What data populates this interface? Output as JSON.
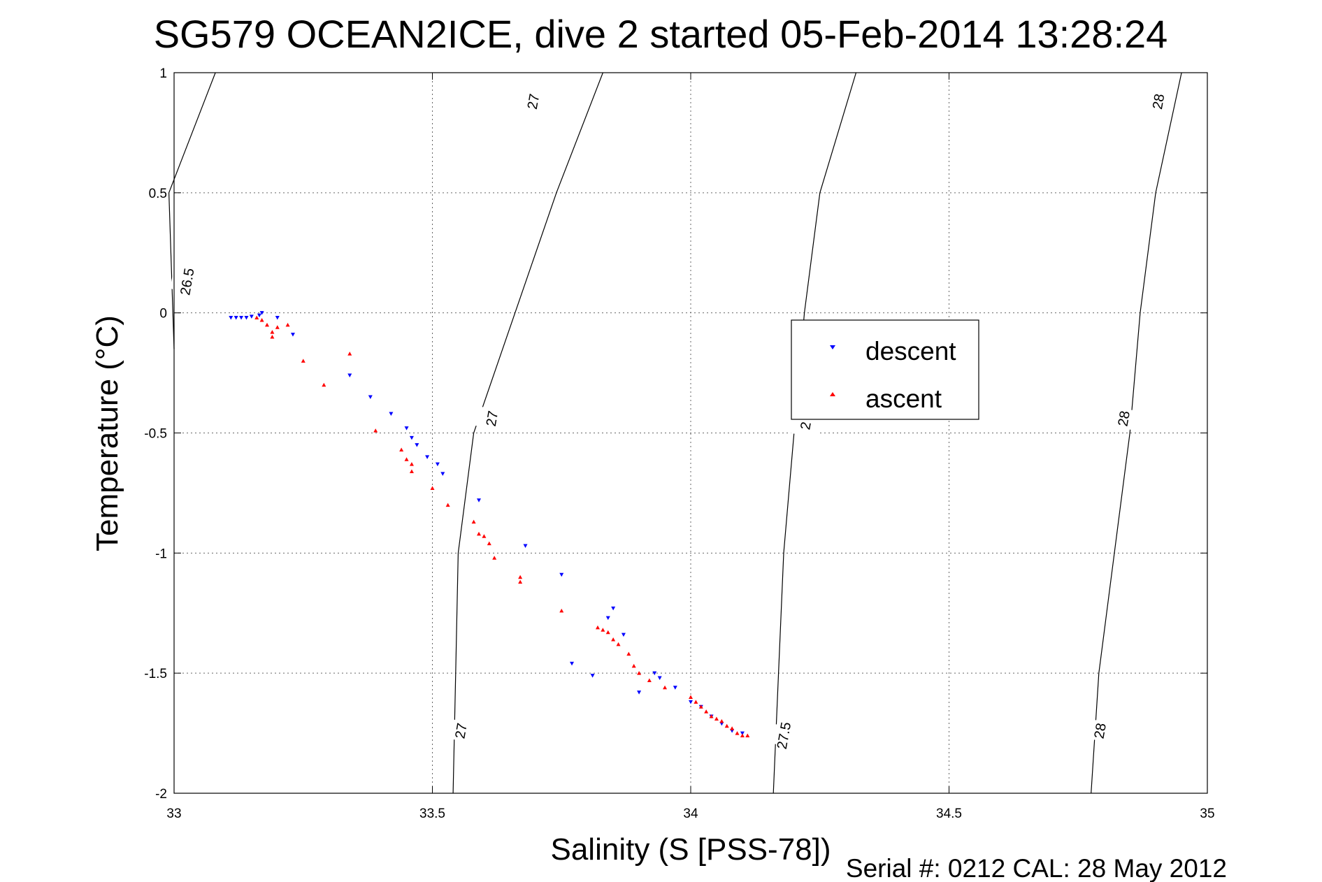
{
  "chart_data": {
    "type": "scatter",
    "title": "SG579 OCEAN2ICE, dive 2 started 05-Feb-2014 13:28:24",
    "xlabel": "Salinity (S [PSS-78])",
    "ylabel": "Temperature (°C)",
    "footer": "Serial #: 0212  CAL: 28 May 2012",
    "xlim": [
      33,
      35
    ],
    "ylim": [
      -2,
      1
    ],
    "x_ticks": [
      "33",
      "33.5",
      "34",
      "34.5",
      "35"
    ],
    "y_ticks": [
      "1",
      "0.5",
      "0",
      "-0.5",
      "-1",
      "-1.5",
      "-2"
    ],
    "grid": true,
    "legend_position": "center-right",
    "colors": {
      "descent": "#0000ff",
      "ascent": "#ff0000",
      "contour": "#000000"
    },
    "isopycnals": [
      {
        "label": "26.5",
        "points": [
          [
            33.08,
            1.0
          ],
          [
            32.99,
            0.5
          ],
          [
            33.0,
            -0.15
          ]
        ],
        "label_at": [
          33.025,
          0.13
        ]
      },
      {
        "label": "27",
        "points": [
          [
            33.83,
            1.0
          ],
          [
            33.74,
            0.5
          ],
          [
            33.66,
            0.0
          ],
          [
            33.58,
            -0.5
          ],
          [
            33.55,
            -1.0
          ],
          [
            33.545,
            -1.5
          ],
          [
            33.54,
            -2.0
          ]
        ],
        "label_at": [
          [
            33.695,
            0.88
          ],
          [
            33.615,
            -0.44
          ],
          [
            33.555,
            -1.74
          ]
        ]
      },
      {
        "label": "27.5",
        "points": [
          [
            34.32,
            1.0
          ],
          [
            34.25,
            0.5
          ],
          [
            34.22,
            0.0
          ],
          [
            34.2,
            -0.5
          ],
          [
            34.18,
            -1.0
          ],
          [
            34.17,
            -1.5
          ],
          [
            34.16,
            -2.0
          ]
        ],
        "label_at": [
          [
            34.18,
            -1.76
          ]
        ]
      },
      {
        "label": "28",
        "points": [
          [
            34.95,
            1.0
          ],
          [
            34.9,
            0.5
          ],
          [
            34.87,
            0.0
          ],
          [
            34.85,
            -0.5
          ],
          [
            34.82,
            -1.0
          ],
          [
            34.79,
            -1.5
          ],
          [
            34.775,
            -2.0
          ]
        ],
        "label_at": [
          [
            34.905,
            0.88
          ],
          [
            34.838,
            -0.44
          ],
          [
            34.792,
            -1.74
          ]
        ]
      },
      {
        "label": "2",
        "points": [],
        "label_at": [
          [
            34.222,
            -0.47
          ]
        ]
      }
    ],
    "series": [
      {
        "name": "descent",
        "marker": "triangle-down",
        "x": [
          33.11,
          33.12,
          33.13,
          33.14,
          33.15,
          33.165,
          33.17,
          33.2,
          33.23,
          33.34,
          33.38,
          33.42,
          33.45,
          33.46,
          33.47,
          33.49,
          33.51,
          33.52,
          33.59,
          33.68,
          33.75,
          33.77,
          33.81,
          33.84,
          33.85,
          33.87,
          33.9,
          33.93,
          33.94,
          33.97,
          34.0,
          34.02,
          34.04,
          34.06,
          34.08,
          34.1
        ],
        "y": [
          -0.02,
          -0.02,
          -0.02,
          -0.02,
          -0.015,
          -0.01,
          0.0,
          -0.02,
          -0.09,
          -0.26,
          -0.35,
          -0.42,
          -0.48,
          -0.52,
          -0.55,
          -0.6,
          -0.63,
          -0.67,
          -0.78,
          -0.97,
          -1.09,
          -1.46,
          -1.51,
          -1.27,
          -1.23,
          -1.34,
          -1.58,
          -1.5,
          -1.52,
          -1.56,
          -1.62,
          -1.64,
          -1.68,
          -1.71,
          -1.74,
          -1.75
        ]
      },
      {
        "name": "ascent",
        "marker": "triangle-up",
        "x": [
          33.16,
          33.17,
          33.18,
          33.19,
          33.19,
          33.2,
          33.22,
          33.25,
          33.29,
          33.34,
          33.39,
          33.44,
          33.45,
          33.46,
          33.46,
          33.5,
          33.53,
          33.58,
          33.59,
          33.6,
          33.61,
          33.62,
          33.67,
          33.67,
          33.75,
          33.82,
          33.83,
          33.84,
          33.85,
          33.86,
          33.88,
          33.89,
          33.9,
          33.92,
          33.95,
          34.0,
          34.01,
          34.02,
          34.03,
          34.04,
          34.05,
          34.06,
          34.07,
          34.08,
          34.09,
          34.1,
          34.11
        ],
        "y": [
          -0.02,
          -0.03,
          -0.05,
          -0.08,
          -0.1,
          -0.06,
          -0.05,
          -0.2,
          -0.3,
          -0.17,
          -0.49,
          -0.57,
          -0.61,
          -0.63,
          -0.66,
          -0.73,
          -0.8,
          -0.87,
          -0.92,
          -0.93,
          -0.96,
          -1.02,
          -1.1,
          -1.12,
          -1.24,
          -1.31,
          -1.32,
          -1.33,
          -1.36,
          -1.38,
          -1.42,
          -1.47,
          -1.5,
          -1.53,
          -1.56,
          -1.6,
          -1.62,
          -1.64,
          -1.66,
          -1.68,
          -1.69,
          -1.7,
          -1.72,
          -1.73,
          -1.75,
          -1.76,
          -1.76
        ]
      }
    ]
  }
}
